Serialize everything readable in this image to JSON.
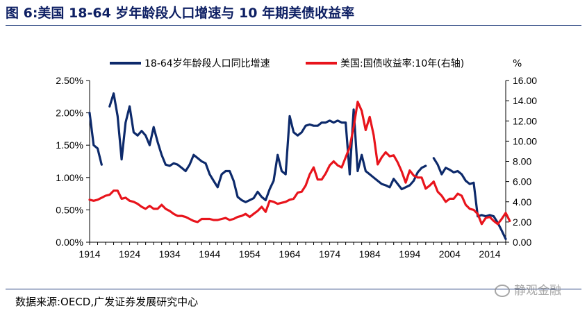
{
  "title": "图 6:美国 18-64 岁年龄段人口增速与 10 年期美债收益率",
  "source": "数据来源:OECD,广发证券发展研究中心",
  "watermark": "静观金融",
  "colors": {
    "series1": "#0d2a6b",
    "series2": "#e8141c",
    "title": "#0d1f63"
  },
  "chart_data": {
    "type": "line",
    "x_ticks": [
      1914,
      1924,
      1934,
      1944,
      1954,
      1964,
      1974,
      1984,
      1994,
      2004,
      2014
    ],
    "xlim": [
      1914,
      2018
    ],
    "y_left": {
      "lim": [
        0,
        2.5
      ],
      "ticks": [
        "0.00%",
        "0.50%",
        "1.00%",
        "1.50%",
        "2.00%",
        "2.50%"
      ]
    },
    "y_right": {
      "lim": [
        0,
        16
      ],
      "ticks": [
        "0.00",
        "2.00",
        "4.00",
        "6.00",
        "8.00",
        "10.00",
        "12.00",
        "14.00",
        "16.00"
      ],
      "unit_label": "%"
    },
    "series": [
      {
        "name": "18-64岁年龄段人口同比增速",
        "axis": "left",
        "color": "#0d2a6b",
        "segments": [
          [
            [
              1914,
              2.0
            ],
            [
              1915,
              1.5
            ],
            [
              1916,
              1.45
            ],
            [
              1917,
              1.2
            ]
          ],
          [
            [
              1919,
              2.1
            ],
            [
              1920,
              2.3
            ],
            [
              1921,
              1.95
            ],
            [
              1922,
              1.28
            ],
            [
              1923,
              1.85
            ],
            [
              1924,
              2.1
            ],
            [
              1925,
              1.7
            ],
            [
              1926,
              1.65
            ],
            [
              1927,
              1.72
            ],
            [
              1928,
              1.65
            ],
            [
              1929,
              1.5
            ],
            [
              1930,
              1.78
            ],
            [
              1931,
              1.55
            ],
            [
              1932,
              1.35
            ],
            [
              1933,
              1.2
            ],
            [
              1934,
              1.18
            ],
            [
              1935,
              1.22
            ],
            [
              1936,
              1.2
            ],
            [
              1937,
              1.15
            ],
            [
              1938,
              1.1
            ],
            [
              1939,
              1.2
            ],
            [
              1940,
              1.35
            ],
            [
              1941,
              1.3
            ],
            [
              1942,
              1.25
            ],
            [
              1943,
              1.22
            ],
            [
              1944,
              1.05
            ],
            [
              1945,
              0.95
            ],
            [
              1946,
              0.85
            ],
            [
              1947,
              1.05
            ],
            [
              1948,
              1.1
            ],
            [
              1949,
              1.1
            ],
            [
              1950,
              0.95
            ],
            [
              1951,
              0.7
            ],
            [
              1952,
              0.65
            ],
            [
              1953,
              0.62
            ],
            [
              1954,
              0.65
            ],
            [
              1955,
              0.68
            ],
            [
              1956,
              0.78
            ],
            [
              1957,
              0.7
            ],
            [
              1958,
              0.65
            ],
            [
              1959,
              0.82
            ],
            [
              1960,
              0.95
            ],
            [
              1961,
              1.35
            ],
            [
              1962,
              1.1
            ],
            [
              1963,
              1.05
            ],
            [
              1964,
              1.95
            ],
            [
              1965,
              1.7
            ],
            [
              1966,
              1.65
            ],
            [
              1967,
              1.7
            ],
            [
              1968,
              1.8
            ],
            [
              1969,
              1.82
            ],
            [
              1970,
              1.8
            ],
            [
              1971,
              1.8
            ],
            [
              1972,
              1.85
            ],
            [
              1973,
              1.85
            ],
            [
              1974,
              1.88
            ],
            [
              1975,
              1.85
            ],
            [
              1976,
              1.88
            ],
            [
              1977,
              1.85
            ],
            [
              1978,
              1.85
            ],
            [
              1979,
              1.05
            ],
            [
              1980,
              2.05
            ],
            [
              1981,
              1.1
            ],
            [
              1982,
              1.35
            ],
            [
              1983,
              1.1
            ],
            [
              1984,
              1.05
            ],
            [
              1985,
              1.0
            ],
            [
              1986,
              0.95
            ],
            [
              1987,
              0.9
            ],
            [
              1988,
              0.88
            ],
            [
              1989,
              0.85
            ],
            [
              1990,
              0.98
            ],
            [
              1991,
              0.9
            ],
            [
              1992,
              0.82
            ],
            [
              1993,
              0.85
            ],
            [
              1994,
              0.88
            ],
            [
              1995,
              0.95
            ],
            [
              1996,
              1.08
            ],
            [
              1997,
              1.15
            ],
            [
              1998,
              1.18
            ]
          ],
          [
            [
              2000,
              1.3
            ],
            [
              2001,
              1.2
            ],
            [
              2002,
              1.05
            ],
            [
              2003,
              1.15
            ],
            [
              2004,
              1.12
            ],
            [
              2005,
              1.08
            ],
            [
              2006,
              1.1
            ],
            [
              2007,
              1.05
            ],
            [
              2008,
              0.95
            ],
            [
              2009,
              0.9
            ],
            [
              2010,
              0.92
            ],
            [
              2011,
              0.4
            ],
            [
              2012,
              0.42
            ],
            [
              2013,
              0.4
            ],
            [
              2014,
              0.42
            ],
            [
              2015,
              0.4
            ],
            [
              2016,
              0.3
            ],
            [
              2017,
              0.18
            ],
            [
              2018,
              0.05
            ]
          ]
        ]
      },
      {
        "name": "美国:国债收益率:10年(右轴)",
        "axis": "right",
        "color": "#e8141c",
        "segments": [
          [
            [
              1914,
              4.2
            ],
            [
              1915,
              4.1
            ],
            [
              1916,
              4.2
            ],
            [
              1917,
              4.4
            ],
            [
              1918,
              4.6
            ],
            [
              1919,
              4.7
            ],
            [
              1920,
              5.1
            ],
            [
              1921,
              5.1
            ],
            [
              1922,
              4.3
            ],
            [
              1923,
              4.4
            ],
            [
              1924,
              4.1
            ],
            [
              1925,
              4.0
            ],
            [
              1926,
              3.8
            ],
            [
              1927,
              3.5
            ],
            [
              1928,
              3.3
            ],
            [
              1929,
              3.6
            ],
            [
              1930,
              3.3
            ],
            [
              1931,
              3.3
            ],
            [
              1932,
              3.7
            ],
            [
              1933,
              3.3
            ],
            [
              1934,
              3.1
            ],
            [
              1935,
              2.8
            ],
            [
              1936,
              2.6
            ],
            [
              1937,
              2.6
            ],
            [
              1938,
              2.5
            ],
            [
              1939,
              2.3
            ],
            [
              1940,
              2.1
            ],
            [
              1941,
              2.0
            ],
            [
              1942,
              2.3
            ],
            [
              1943,
              2.3
            ],
            [
              1944,
              2.3
            ],
            [
              1945,
              2.2
            ],
            [
              1946,
              2.2
            ],
            [
              1947,
              2.3
            ],
            [
              1948,
              2.4
            ],
            [
              1949,
              2.2
            ],
            [
              1950,
              2.3
            ],
            [
              1951,
              2.5
            ],
            [
              1952,
              2.6
            ],
            [
              1953,
              2.8
            ],
            [
              1954,
              2.5
            ],
            [
              1955,
              2.8
            ],
            [
              1956,
              3.1
            ],
            [
              1957,
              3.5
            ],
            [
              1958,
              3.0
            ],
            [
              1959,
              4.1
            ],
            [
              1960,
              4.0
            ],
            [
              1961,
              3.8
            ],
            [
              1962,
              3.9
            ],
            [
              1963,
              4.0
            ],
            [
              1964,
              4.2
            ],
            [
              1965,
              4.3
            ],
            [
              1966,
              4.9
            ],
            [
              1967,
              5.0
            ],
            [
              1968,
              5.6
            ],
            [
              1969,
              6.7
            ],
            [
              1970,
              7.4
            ],
            [
              1971,
              6.2
            ],
            [
              1972,
              6.2
            ],
            [
              1973,
              6.8
            ],
            [
              1974,
              7.6
            ],
            [
              1975,
              8.0
            ],
            [
              1976,
              7.6
            ],
            [
              1977,
              7.4
            ],
            [
              1978,
              8.4
            ],
            [
              1979,
              9.4
            ],
            [
              1980,
              11.4
            ],
            [
              1981,
              13.9
            ],
            [
              1982,
              13.0
            ],
            [
              1983,
              11.1
            ],
            [
              1984,
              12.4
            ],
            [
              1985,
              10.6
            ],
            [
              1986,
              7.7
            ],
            [
              1987,
              8.4
            ],
            [
              1988,
              8.9
            ],
            [
              1989,
              8.5
            ],
            [
              1990,
              8.6
            ],
            [
              1991,
              7.9
            ],
            [
              1992,
              7.0
            ],
            [
              1993,
              5.9
            ],
            [
              1994,
              7.1
            ],
            [
              1995,
              6.6
            ],
            [
              1996,
              6.4
            ],
            [
              1997,
              6.4
            ],
            [
              1998,
              5.3
            ],
            [
              1999,
              5.6
            ],
            [
              2000,
              6.0
            ],
            [
              2001,
              5.0
            ],
            [
              2002,
              4.6
            ],
            [
              2003,
              4.0
            ],
            [
              2004,
              4.3
            ],
            [
              2005,
              4.3
            ],
            [
              2006,
              4.8
            ],
            [
              2007,
              4.6
            ],
            [
              2008,
              3.7
            ],
            [
              2009,
              3.3
            ],
            [
              2010,
              3.2
            ],
            [
              2011,
              2.8
            ],
            [
              2012,
              1.8
            ],
            [
              2013,
              2.4
            ],
            [
              2014,
              2.5
            ],
            [
              2015,
              2.1
            ],
            [
              2016,
              1.8
            ],
            [
              2017,
              2.3
            ],
            [
              2018,
              2.9
            ],
            [
              2019,
              2.1
            ]
          ]
        ]
      }
    ]
  }
}
